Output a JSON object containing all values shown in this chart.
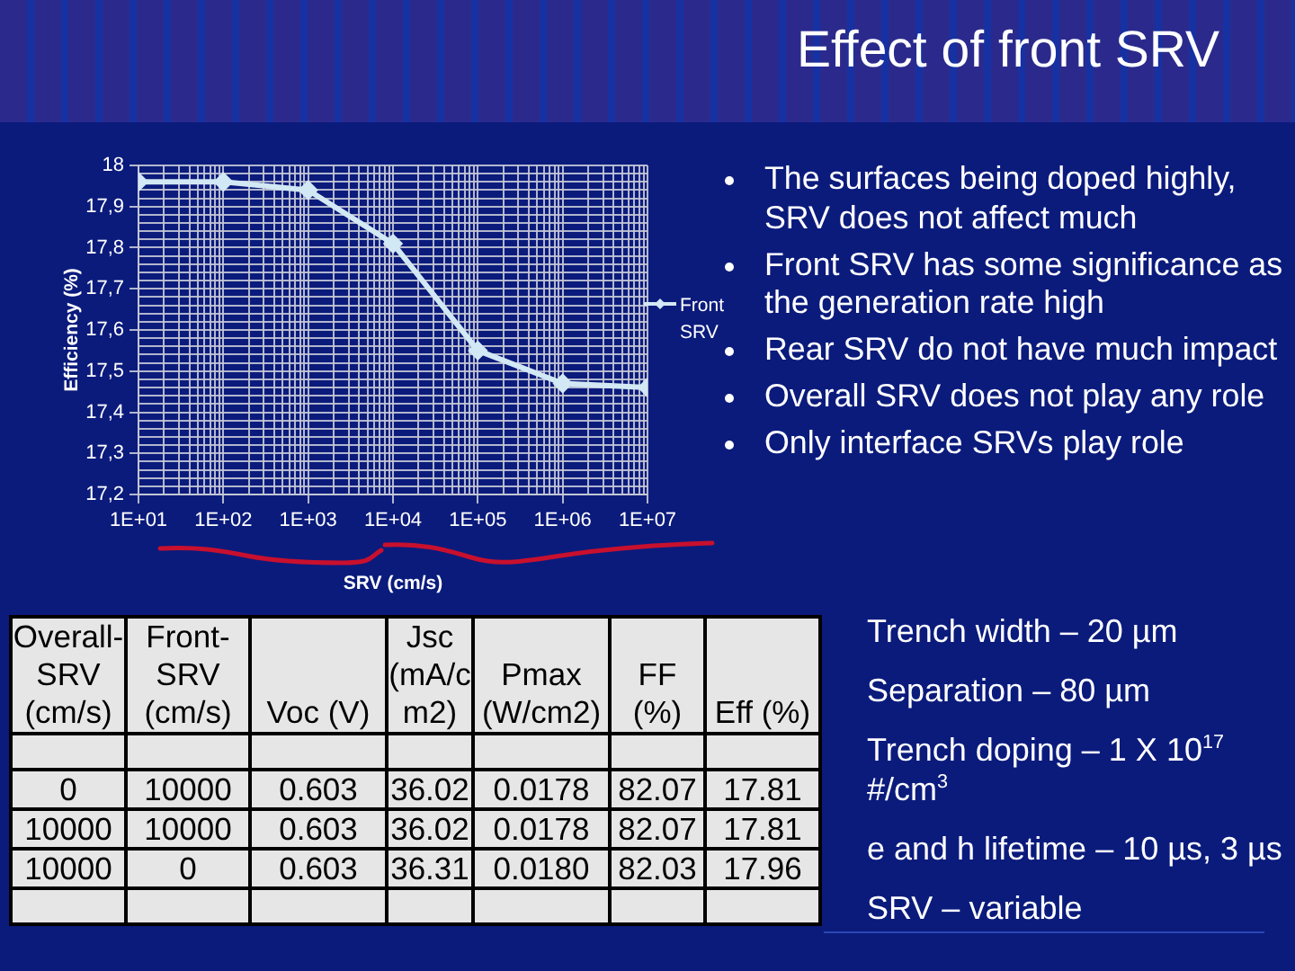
{
  "chart_data": [
    {
      "type": "line",
      "xlabel": "SRV (cm/s)",
      "ylabel": "Efficiency (%)",
      "log": "x",
      "grid": true,
      "legend": "right",
      "marker": "diamond",
      "annotations": [
        "The surfaces being doped highly, SRV does not affect much",
        "Front SRV has some significance as the generation rate high",
        "Rear SRV do not have much impact",
        "Overall SRV does not play any role",
        "Only interface SRVs play role"
      ],
      "x": [
        10,
        100,
        1000,
        10000,
        100000,
        1000000,
        10000000
      ],
      "series": [
        {
          "name": "Front SRV",
          "color": "#d2e8f4",
          "values": [
            17.96,
            17.96,
            17.94,
            17.81,
            17.55,
            17.47,
            17.46
          ]
        }
      ],
      "xlim": [
        10,
        10000000
      ],
      "ylim": [
        17.2,
        18
      ],
      "xticks": [
        {
          "value": 10,
          "label": "1E+01"
        },
        {
          "value": 20,
          "label": null
        },
        {
          "value": 30,
          "label": null
        },
        {
          "value": 40,
          "label": null
        },
        {
          "value": 50,
          "label": null
        },
        {
          "value": 60,
          "label": null
        },
        {
          "value": 70,
          "label": null
        },
        {
          "value": 80,
          "label": null
        },
        {
          "value": 90,
          "label": null
        },
        {
          "value": 100,
          "label": "1E+02"
        },
        {
          "value": 200,
          "label": null
        },
        {
          "value": 300,
          "label": null
        },
        {
          "value": 400,
          "label": null
        },
        {
          "value": 500,
          "label": null
        },
        {
          "value": 600,
          "label": null
        },
        {
          "value": 700,
          "label": null
        },
        {
          "value": 800,
          "label": null
        },
        {
          "value": 900,
          "label": null
        },
        {
          "value": 1000,
          "label": "1E+03"
        },
        {
          "value": 2000,
          "label": null
        },
        {
          "value": 3000,
          "label": null
        },
        {
          "value": 4000,
          "label": null
        },
        {
          "value": 5000,
          "label": null
        },
        {
          "value": 6000,
          "label": null
        },
        {
          "value": 7000,
          "label": null
        },
        {
          "value": 8000,
          "label": null
        },
        {
          "value": 9000,
          "label": null
        },
        {
          "value": 10000,
          "label": "1E+04"
        },
        {
          "value": 20000,
          "label": null
        },
        {
          "value": 30000,
          "label": null
        },
        {
          "value": 40000,
          "label": null
        },
        {
          "value": 50000,
          "label": null
        },
        {
          "value": 60000,
          "label": null
        },
        {
          "value": 70000,
          "label": null
        },
        {
          "value": 80000,
          "label": null
        },
        {
          "value": 90000,
          "label": null
        },
        {
          "value": 100000,
          "label": "1E+05"
        },
        {
          "value": 200000,
          "label": null
        },
        {
          "value": 300000,
          "label": null
        },
        {
          "value": 400000,
          "label": null
        },
        {
          "value": 500000,
          "label": null
        },
        {
          "value": 600000,
          "label": null
        },
        {
          "value": 700000,
          "label": null
        },
        {
          "value": 800000,
          "label": null
        },
        {
          "value": 900000,
          "label": null
        },
        {
          "value": 1000000,
          "label": "1E+06"
        },
        {
          "value": 2000000,
          "label": null
        },
        {
          "value": 3000000,
          "label": null
        },
        {
          "value": 4000000,
          "label": null
        },
        {
          "value": 5000000,
          "label": null
        },
        {
          "value": 6000000,
          "label": null
        },
        {
          "value": 7000000,
          "label": null
        },
        {
          "value": 8000000,
          "label": null
        },
        {
          "value": 9000000,
          "label": null
        },
        {
          "value": 10000000,
          "label": "1E+07"
        }
      ],
      "yticks": [
        {
          "value": 17.2,
          "label": "17,2"
        },
        {
          "value": 17.22,
          "label": null
        },
        {
          "value": 17.24,
          "label": null
        },
        {
          "value": 17.26,
          "label": null
        },
        {
          "value": 17.28,
          "label": null
        },
        {
          "value": 17.3,
          "label": "17,3"
        },
        {
          "value": 17.32,
          "label": null
        },
        {
          "value": 17.34,
          "label": null
        },
        {
          "value": 17.36,
          "label": null
        },
        {
          "value": 17.38,
          "label": null
        },
        {
          "value": 17.4,
          "label": "17,4"
        },
        {
          "value": 17.42,
          "label": null
        },
        {
          "value": 17.44,
          "label": null
        },
        {
          "value": 17.46,
          "label": null
        },
        {
          "value": 17.48,
          "label": null
        },
        {
          "value": 17.5,
          "label": "17,5"
        },
        {
          "value": 17.52,
          "label": null
        },
        {
          "value": 17.54,
          "label": null
        },
        {
          "value": 17.56,
          "label": null
        },
        {
          "value": 17.58,
          "label": null
        },
        {
          "value": 17.6,
          "label": "17,6"
        },
        {
          "value": 17.62,
          "label": null
        },
        {
          "value": 17.64,
          "label": null
        },
        {
          "value": 17.66,
          "label": null
        },
        {
          "value": 17.68,
          "label": null
        },
        {
          "value": 17.7,
          "label": "17,7"
        },
        {
          "value": 17.72,
          "label": null
        },
        {
          "value": 17.74,
          "label": null
        },
        {
          "value": 17.76,
          "label": null
        },
        {
          "value": 17.78,
          "label": null
        },
        {
          "value": 17.8,
          "label": "17,8"
        },
        {
          "value": 17.82,
          "label": null
        },
        {
          "value": 17.84,
          "label": null
        },
        {
          "value": 17.86,
          "label": null
        },
        {
          "value": 17.88,
          "label": null
        },
        {
          "value": 17.9,
          "label": "17,9"
        },
        {
          "value": 17.92,
          "label": null
        },
        {
          "value": 17.94,
          "label": null
        },
        {
          "value": 17.96,
          "label": null
        },
        {
          "value": 17.98,
          "label": null
        },
        18
      ]
    },
    {
      "type": "other",
      "title": "Effect of front SRV",
      "categories": [
        "Overall-SRV (cm/s)",
        "Front-SRV (cm/s)",
        "Voc (V)",
        "Jsc (mA/cm2)",
        "Pmax (W/cm2)",
        "FF (%)",
        "Eff (%)"
      ],
      "cell_labels": [
        [
          null,
          null,
          null,
          null,
          null,
          null,
          null
        ],
        [
          "0",
          "10000",
          "0.603",
          "36.02",
          "0.0178",
          "82.07",
          "17.81"
        ],
        [
          "10000",
          "10000",
          "0.603",
          "36.02",
          "0.0178",
          "82.07",
          "17.81"
        ],
        [
          "10000",
          "0",
          "0.603",
          "36.31",
          "0.0180",
          "82.03",
          "17.96"
        ],
        [
          null,
          null,
          null,
          null,
          null,
          null,
          null
        ]
      ],
      "annotations": [
        "Trench width – 20 µm",
        "Separation – 80 µm",
        "Trench doping – 1 X 10$^{17}$ #/cm$^{3}$",
        "e and h lifetime – 10 µs, 3 µs",
        "SRV – variable"
      ]
    }
  ]
}
